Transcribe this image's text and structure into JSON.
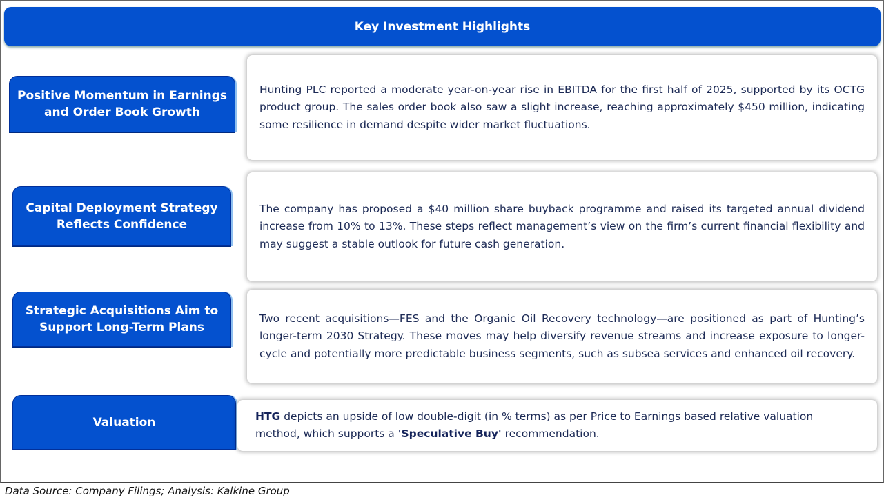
{
  "title": "Key Investment Highlights",
  "highlights": [
    {
      "label": "Positive Momentum in Earnings and Order Book Growth",
      "text": "Hunting PLC reported a moderate year-on-year rise in EBITDA for the first half of 2025, supported by its OCTG product group. The sales order book also saw a slight increase, reaching approximately $450 million, indicating some resilience in demand despite wider market fluctuations."
    },
    {
      "label": "Capital Deployment Strategy Reflects Confidence",
      "text": "The company has proposed a $40 million share buyback programme and raised its targeted annual dividend increase from 10% to 13%. These steps reflect management’s view on the firm’s current financial flexibility and may suggest a stable outlook for future cash generation."
    },
    {
      "label": "Strategic Acquisitions Aim to Support Long-Term Plans",
      "text": "Two recent acquisitions—FES and the Organic Oil Recovery technology—are positioned as part of Hunting’s longer-term 2030 Strategy. These moves may help diversify revenue streams and increase exposure to longer-cycle and potentially more predictable business segments, such as subsea services and enhanced oil recovery."
    },
    {
      "label": "Valuation",
      "ticker": "HTG",
      "text_a": " depicts an upside of low double-digit (in % terms) as per Price to Earnings based relative valuation method, which supports a ",
      "recommendation": "'Speculative Buy'",
      "text_b": " recommendation."
    }
  ],
  "footer": "Data Source: Company Filings; Analysis: Kalkine Group"
}
